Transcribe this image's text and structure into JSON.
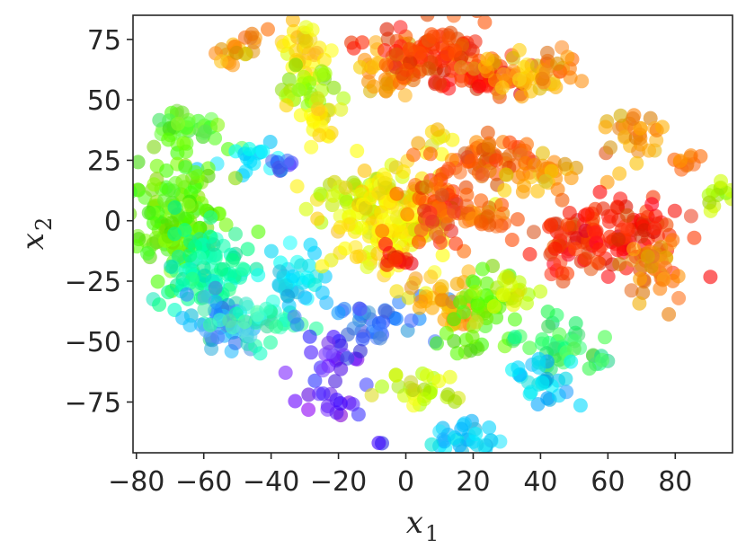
{
  "chart_data": {
    "type": "scatter",
    "xlabel": "x",
    "xlabel_sub": "1",
    "ylabel": "x",
    "ylabel_sub": "2",
    "xlim": [
      -81,
      97
    ],
    "ylim": [
      -96,
      85
    ],
    "xticks": [
      -80,
      -60,
      -40,
      -20,
      0,
      20,
      40,
      60,
      80
    ],
    "yticks": [
      75,
      50,
      25,
      0,
      -25,
      -50,
      -75
    ],
    "xtick_labels": [
      "−80",
      "−60",
      "−40",
      "−20",
      "0",
      "20",
      "40",
      "60",
      "80"
    ],
    "ytick_labels": [
      "75",
      "50",
      "25",
      "0",
      "−25",
      "−50",
      "−75"
    ],
    "grid": false,
    "legend": "none",
    "colormap": "gist_rainbow_r (red → orange → yellow → green → cyan → blue → violet)",
    "marker_alpha": 0.6,
    "clusters": [
      {
        "center": [
          -50,
          70
        ],
        "spread": [
          4,
          3
        ],
        "n": 18,
        "color": "#ffa500"
      },
      {
        "center": [
          -44,
          77
        ],
        "spread": [
          2,
          1.5
        ],
        "n": 5,
        "color": "#ff7700"
      },
      {
        "center": [
          -30,
          70
        ],
        "spread": [
          3,
          6
        ],
        "n": 35,
        "color": "#ffdd00"
      },
      {
        "center": [
          -30,
          55
        ],
        "spread": [
          4,
          4
        ],
        "n": 30,
        "color": "#99ff00"
      },
      {
        "center": [
          -25,
          42
        ],
        "spread": [
          3,
          5
        ],
        "n": 22,
        "color": "#ffee00"
      },
      {
        "center": [
          -65,
          38
        ],
        "spread": [
          6,
          4
        ],
        "n": 40,
        "color": "#66ff33"
      },
      {
        "center": [
          -45,
          26
        ],
        "spread": [
          5,
          3
        ],
        "n": 18,
        "color": "#00e5ff"
      },
      {
        "center": [
          -37,
          23
        ],
        "spread": [
          2.5,
          2
        ],
        "n": 8,
        "color": "#3355ff"
      },
      {
        "center": [
          -70,
          0
        ],
        "spread": [
          8,
          12
        ],
        "n": 160,
        "color": "#66ff00"
      },
      {
        "center": [
          -58,
          -20
        ],
        "spread": [
          8,
          10
        ],
        "n": 90,
        "color": "#00ffaa"
      },
      {
        "center": [
          -55,
          -42
        ],
        "spread": [
          6,
          6
        ],
        "n": 40,
        "color": "#3399ff"
      },
      {
        "center": [
          -42,
          -42
        ],
        "spread": [
          8,
          4
        ],
        "n": 40,
        "color": "#33ffbb"
      },
      {
        "center": [
          -32,
          -25
        ],
        "spread": [
          5,
          7
        ],
        "n": 35,
        "color": "#00e5ff"
      },
      {
        "center": [
          -12,
          -42
        ],
        "spread": [
          10,
          5
        ],
        "n": 40,
        "color": "#3377ff"
      },
      {
        "center": [
          -20,
          -58
        ],
        "spread": [
          6,
          6
        ],
        "n": 25,
        "color": "#5533ff"
      },
      {
        "center": [
          -22,
          -76
        ],
        "spread": [
          5,
          3
        ],
        "n": 15,
        "color": "#6611ff"
      },
      {
        "center": [
          -8,
          -92
        ],
        "spread": [
          1,
          1
        ],
        "n": 2,
        "color": "#3300ff"
      },
      {
        "center": [
          -12,
          10
        ],
        "spread": [
          6,
          5
        ],
        "n": 55,
        "color": "#ccff00"
      },
      {
        "center": [
          -4,
          0
        ],
        "spread": [
          9,
          12
        ],
        "n": 160,
        "color": "#ffee00"
      },
      {
        "center": [
          8,
          5
        ],
        "spread": [
          5,
          8
        ],
        "n": 60,
        "color": "#ff5500"
      },
      {
        "center": [
          -2,
          -16
        ],
        "spread": [
          3,
          2
        ],
        "n": 12,
        "color": "#ff1100"
      },
      {
        "center": [
          -4,
          62
        ],
        "spread": [
          5,
          6
        ],
        "n": 45,
        "color": "#ffaa00"
      },
      {
        "center": [
          10,
          70
        ],
        "spread": [
          10,
          7
        ],
        "n": 110,
        "color": "#ff4400"
      },
      {
        "center": [
          22,
          58
        ],
        "spread": [
          8,
          4
        ],
        "n": 40,
        "color": "#ff2200"
      },
      {
        "center": [
          35,
          60
        ],
        "spread": [
          7,
          4
        ],
        "n": 40,
        "color": "#ffbb00"
      },
      {
        "center": [
          45,
          62
        ],
        "spread": [
          3,
          4
        ],
        "n": 15,
        "color": "#ff8800"
      },
      {
        "center": [
          10,
          34
        ],
        "spread": [
          3,
          2
        ],
        "n": 8,
        "color": "#ffcc00"
      },
      {
        "center": [
          25,
          24
        ],
        "spread": [
          9,
          5
        ],
        "n": 70,
        "color": "#ff6600"
      },
      {
        "center": [
          40,
          20
        ],
        "spread": [
          6,
          4
        ],
        "n": 30,
        "color": "#ffaa00"
      },
      {
        "center": [
          25,
          2
        ],
        "spread": [
          4,
          3
        ],
        "n": 25,
        "color": "#ff7700"
      },
      {
        "center": [
          67,
          35
        ],
        "spread": [
          4,
          6
        ],
        "n": 30,
        "color": "#ff9900"
      },
      {
        "center": [
          85,
          25
        ],
        "spread": [
          3,
          2
        ],
        "n": 10,
        "color": "#ff8800"
      },
      {
        "center": [
          92,
          10
        ],
        "spread": [
          4,
          3
        ],
        "n": 15,
        "color": "#aaff00"
      },
      {
        "center": [
          50,
          -10
        ],
        "spread": [
          6,
          8
        ],
        "n": 55,
        "color": "#ff3300"
      },
      {
        "center": [
          65,
          -5
        ],
        "spread": [
          8,
          8
        ],
        "n": 90,
        "color": "#ff2200"
      },
      {
        "center": [
          75,
          -20
        ],
        "spread": [
          5,
          6
        ],
        "n": 40,
        "color": "#ff8800"
      },
      {
        "center": [
          13,
          -35
        ],
        "spread": [
          5,
          5
        ],
        "n": 40,
        "color": "#ffaa00"
      },
      {
        "center": [
          22,
          -38
        ],
        "spread": [
          5,
          10
        ],
        "n": 45,
        "color": "#66ff00"
      },
      {
        "center": [
          30,
          -28
        ],
        "spread": [
          4,
          5
        ],
        "n": 20,
        "color": "#ccff00"
      },
      {
        "center": [
          48,
          -52
        ],
        "spread": [
          8,
          5
        ],
        "n": 45,
        "color": "#33ff66"
      },
      {
        "center": [
          42,
          -65
        ],
        "spread": [
          5,
          5
        ],
        "n": 30,
        "color": "#00ccff"
      },
      {
        "center": [
          5,
          -70
        ],
        "spread": [
          7,
          3
        ],
        "n": 30,
        "color": "#ccff00"
      },
      {
        "center": [
          18,
          -90
        ],
        "spread": [
          6,
          3
        ],
        "n": 30,
        "color": "#00d5ff"
      }
    ]
  }
}
